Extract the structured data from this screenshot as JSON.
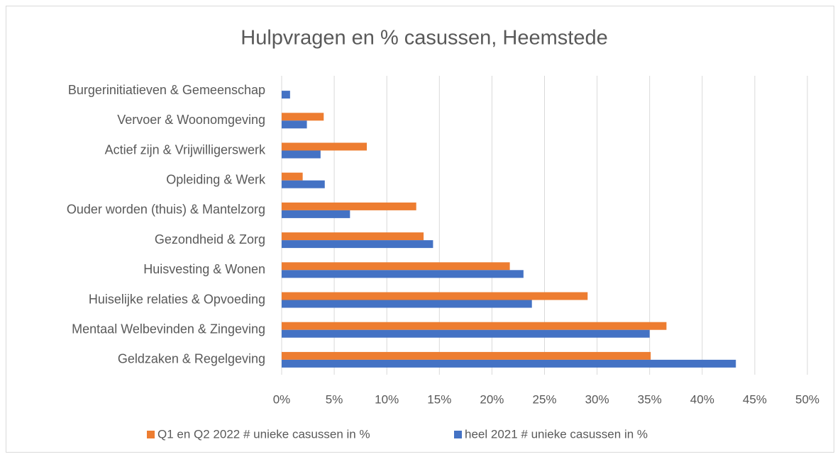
{
  "chart_data": {
    "type": "bar",
    "orientation": "horizontal",
    "title": "Hulpvragen en % casussen, Heemstede",
    "categories": [
      "Burgerinitiatieven & Gemeenschap",
      "Vervoer & Woonomgeving",
      "Actief zijn & Vrijwilligerswerk",
      "Opleiding & Werk",
      "Ouder worden (thuis) & Mantelzorg",
      "Gezondheid & Zorg",
      "Huisvesting & Wonen",
      "Huiselijke relaties & Opvoeding",
      "Mentaal Welbevinden & Zingeving",
      "Geldzaken & Regelgeving"
    ],
    "series": [
      {
        "name": "Q1 en Q2 2022 # unieke casussen in %",
        "color": "#ed7d31",
        "values": [
          0,
          4.0,
          8.1,
          2.0,
          12.8,
          13.5,
          21.7,
          29.1,
          36.6,
          35.1
        ]
      },
      {
        "name": "heel 2021 # unieke casussen in %",
        "color": "#4472c4",
        "values": [
          0.8,
          2.4,
          3.7,
          4.1,
          6.5,
          14.4,
          23.0,
          23.8,
          35.0,
          43.2
        ]
      }
    ],
    "xlim": [
      0,
      50
    ],
    "xticks": [
      {
        "value": 0,
        "label": "0%"
      },
      {
        "value": 5,
        "label": "5%"
      },
      {
        "value": 10,
        "label": "10%"
      },
      {
        "value": 15,
        "label": "15%"
      },
      {
        "value": 20,
        "label": "20%"
      },
      {
        "value": 25,
        "label": "25%"
      },
      {
        "value": 30,
        "label": "30%"
      },
      {
        "value": 35,
        "label": "35%"
      },
      {
        "value": 40,
        "label": "40%"
      },
      {
        "value": 45,
        "label": "45%"
      },
      {
        "value": 50,
        "label": "50%"
      }
    ],
    "grid": true,
    "legend": "bottom"
  }
}
